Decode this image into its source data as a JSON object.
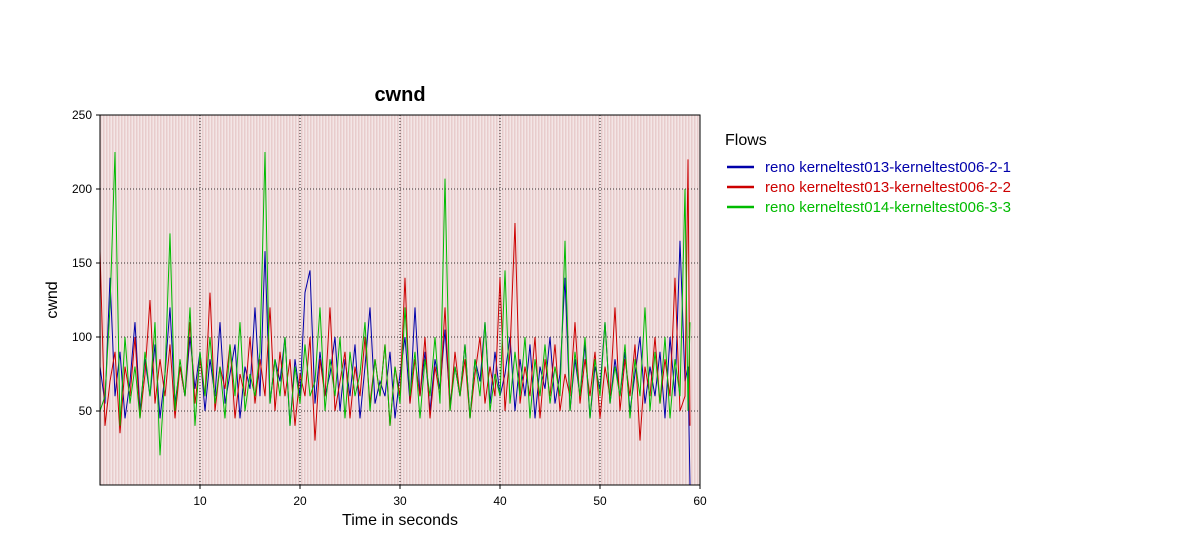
{
  "chart_data": {
    "type": "line",
    "title": "cwnd",
    "xlabel": "Time in seconds",
    "ylabel": "cwnd",
    "xlim": [
      0,
      60
    ],
    "ylim": [
      0,
      250
    ],
    "x_ticks": [
      10,
      20,
      30,
      40,
      50,
      60
    ],
    "y_ticks": [
      50,
      100,
      150,
      200,
      250
    ],
    "grid": true,
    "legend_title": "Flows",
    "legend_position": "right",
    "colors": {
      "shade": "#e8cccc",
      "shade_background": "#f3e6e6",
      "grid": "#000000"
    },
    "series": [
      {
        "name": "reno kerneltest013-kerneltest006-2-1",
        "color": "#0000aa",
        "x": [
          0,
          0.5,
          1,
          1.5,
          2,
          2.5,
          3,
          3.5,
          4,
          4.5,
          5,
          5.5,
          6,
          6.5,
          7,
          7.5,
          8,
          8.5,
          9,
          9.5,
          10,
          10.5,
          11,
          11.5,
          12,
          12.5,
          13,
          13.5,
          14,
          14.5,
          15,
          15.5,
          16,
          16.5,
          17,
          17.5,
          18,
          18.5,
          19,
          19.5,
          20,
          20.5,
          21,
          21.5,
          22,
          22.5,
          23,
          23.5,
          24,
          24.5,
          25,
          25.5,
          26,
          26.5,
          27,
          27.5,
          28,
          28.5,
          29,
          29.5,
          30,
          30.5,
          31,
          31.5,
          32,
          32.5,
          33,
          33.5,
          34,
          34.5,
          35,
          35.5,
          36,
          36.5,
          37,
          37.5,
          38,
          38.5,
          39,
          39.5,
          40,
          40.5,
          41,
          41.5,
          42,
          42.5,
          43,
          43.5,
          44,
          44.5,
          45,
          45.5,
          46,
          46.5,
          47,
          47.5,
          48,
          48.5,
          49,
          49.5,
          50,
          50.5,
          51,
          51.5,
          52,
          52.5,
          53,
          53.5,
          54,
          54.5,
          55,
          55.5,
          56,
          56.5,
          57,
          57.5,
          58,
          58.5,
          58.8,
          59
        ],
        "y": [
          80,
          55,
          140,
          60,
          90,
          45,
          70,
          110,
          50,
          85,
          60,
          95,
          45,
          75,
          120,
          55,
          80,
          60,
          100,
          65,
          90,
          50,
          85,
          60,
          110,
          55,
          75,
          95,
          45,
          80,
          65,
          120,
          60,
          158,
          55,
          85,
          70,
          100,
          40,
          85,
          60,
          130,
          145,
          55,
          90,
          60,
          75,
          100,
          50,
          85,
          60,
          95,
          45,
          80,
          120,
          55,
          70,
          60,
          90,
          45,
          75,
          100,
          55,
          120,
          60,
          90,
          50,
          85,
          65,
          105,
          55,
          80,
          60,
          95,
          45,
          85,
          70,
          110,
          55,
          90,
          60,
          75,
          100,
          50,
          85,
          60,
          95,
          45,
          80,
          65,
          100,
          55,
          75,
          140,
          50,
          85,
          60,
          95,
          45,
          80,
          65,
          110,
          55,
          85,
          60,
          90,
          50,
          75,
          100,
          55,
          80,
          60,
          90,
          45,
          100,
          60,
          165,
          70,
          80,
          0
        ]
      },
      {
        "name": "reno kerneltest013-kerneltest006-2-2",
        "color": "#cc0000",
        "x": [
          0,
          0.5,
          1,
          1.5,
          2,
          2.5,
          3,
          3.5,
          4,
          4.5,
          5,
          5.5,
          6,
          6.5,
          7,
          7.5,
          8,
          8.5,
          9,
          9.5,
          10,
          10.5,
          11,
          11.5,
          12,
          12.5,
          13,
          13.5,
          14,
          14.5,
          15,
          15.5,
          16,
          16.5,
          17,
          17.5,
          18,
          18.5,
          19,
          19.5,
          20,
          20.5,
          21,
          21.5,
          22,
          22.5,
          23,
          23.5,
          24,
          24.5,
          25,
          25.5,
          26,
          26.5,
          27,
          27.5,
          28,
          28.5,
          29,
          29.5,
          30,
          30.5,
          31,
          31.5,
          32,
          32.5,
          33,
          33.5,
          34,
          34.5,
          35,
          35.5,
          36,
          36.5,
          37,
          37.5,
          38,
          38.5,
          39,
          39.5,
          40,
          40.5,
          41,
          41.5,
          42,
          42.5,
          43,
          43.5,
          44,
          44.5,
          45,
          45.5,
          46,
          46.5,
          47,
          47.5,
          48,
          48.5,
          49,
          49.5,
          50,
          50.5,
          51,
          51.5,
          52,
          52.5,
          53,
          53.5,
          54,
          54.5,
          55,
          55.5,
          56,
          56.5,
          57,
          57.5,
          58,
          58.5,
          58.8,
          59
        ],
        "y": [
          158,
          40,
          70,
          90,
          35,
          80,
          60,
          100,
          45,
          75,
          125,
          55,
          85,
          60,
          95,
          45,
          80,
          60,
          110,
          55,
          85,
          60,
          130,
          50,
          80,
          65,
          95,
          45,
          75,
          60,
          100,
          55,
          85,
          60,
          120,
          50,
          90,
          60,
          85,
          40,
          75,
          60,
          100,
          30,
          85,
          60,
          120,
          50,
          70,
          90,
          45,
          80,
          60,
          100,
          55,
          85,
          60,
          95,
          40,
          80,
          60,
          140,
          55,
          85,
          60,
          100,
          45,
          80,
          60,
          120,
          50,
          90,
          60,
          85,
          45,
          75,
          100,
          55,
          80,
          60,
          140,
          50,
          90,
          177,
          55,
          80,
          60,
          100,
          45,
          85,
          60,
          95,
          50,
          75,
          60,
          110,
          55,
          85,
          60,
          90,
          45,
          80,
          60,
          120,
          50,
          85,
          60,
          95,
          30,
          80,
          60,
          100,
          55,
          85,
          60,
          140,
          50,
          60,
          220,
          40
        ]
      },
      {
        "name": "reno kerneltest014-kerneltest006-3-3",
        "color": "#00bb00",
        "x": [
          0,
          0.5,
          1,
          1.5,
          2,
          2.5,
          3,
          3.5,
          4,
          4.5,
          5,
          5.5,
          6,
          6.5,
          7,
          7.5,
          8,
          8.5,
          9,
          9.5,
          10,
          10.5,
          11,
          11.5,
          12,
          12.5,
          13,
          13.5,
          14,
          14.5,
          15,
          15.5,
          16,
          16.5,
          17,
          17.5,
          18,
          18.5,
          19,
          19.5,
          20,
          20.5,
          21,
          21.5,
          22,
          22.5,
          23,
          23.5,
          24,
          24.5,
          25,
          25.5,
          26,
          26.5,
          27,
          27.5,
          28,
          28.5,
          29,
          29.5,
          30,
          30.5,
          31,
          31.5,
          32,
          32.5,
          33,
          33.5,
          34,
          34.5,
          35,
          35.5,
          36,
          36.5,
          37,
          37.5,
          38,
          38.5,
          39,
          39.5,
          40,
          40.5,
          41,
          41.5,
          42,
          42.5,
          43,
          43.5,
          44,
          44.5,
          45,
          45.5,
          46,
          46.5,
          47,
          47.5,
          48,
          48.5,
          49,
          49.5,
          50,
          50.5,
          51,
          51.5,
          52,
          52.5,
          53,
          53.5,
          54,
          54.5,
          55,
          55.5,
          56,
          56.5,
          57,
          57.5,
          58,
          58.5,
          58.8,
          59
        ],
        "y": [
          50,
          60,
          120,
          225,
          40,
          100,
          55,
          80,
          45,
          90,
          60,
          110,
          20,
          75,
          170,
          50,
          85,
          60,
          120,
          40,
          90,
          60,
          100,
          55,
          80,
          45,
          95,
          60,
          110,
          50,
          75,
          60,
          90,
          225,
          55,
          85,
          60,
          100,
          40,
          80,
          55,
          95,
          60,
          70,
          120,
          50,
          85,
          60,
          100,
          45,
          90,
          60,
          75,
          110,
          50,
          85,
          60,
          95,
          40,
          80,
          55,
          120,
          60,
          90,
          45,
          85,
          60,
          100,
          55,
          207,
          50,
          80,
          60,
          95,
          45,
          85,
          60,
          110,
          50,
          75,
          60,
          145,
          55,
          90,
          60,
          100,
          45,
          85,
          60,
          95,
          55,
          80,
          60,
          165,
          50,
          90,
          60,
          100,
          45,
          85,
          60,
          110,
          55,
          80,
          60,
          95,
          45,
          85,
          60,
          120,
          50,
          90,
          55,
          100,
          45,
          85,
          60,
          200,
          50,
          110
        ]
      }
    ]
  }
}
